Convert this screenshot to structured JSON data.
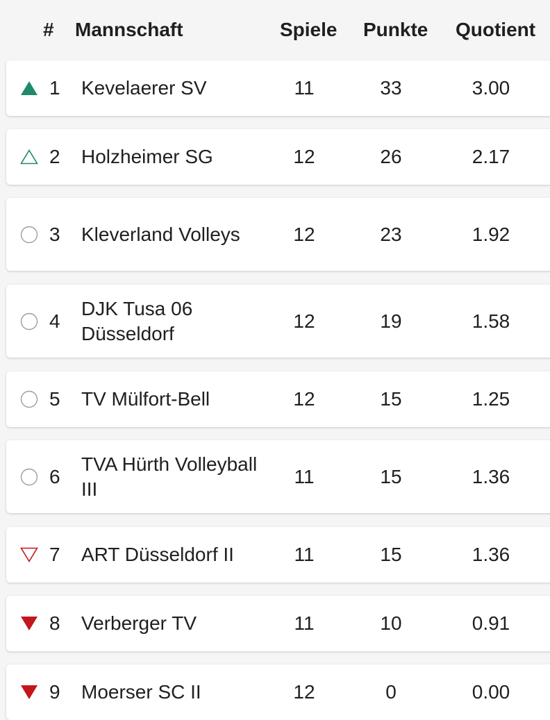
{
  "header": {
    "rank": "#",
    "team": "Mannschaft",
    "games": "Spiele",
    "points": "Punkte",
    "quotient": "Quotient"
  },
  "colors": {
    "up_green": "#1e8a6b",
    "down_red": "#c4161c",
    "neutral_gray": "#9e9e9e"
  },
  "rows": [
    {
      "rank": "1",
      "team": "Kevelaerer SV",
      "games": "11",
      "points": "33",
      "quotient": "3.00",
      "trend": "up-filled-icon"
    },
    {
      "rank": "2",
      "team": "Holzheimer SG",
      "games": "12",
      "points": "26",
      "quotient": "2.17",
      "trend": "up-outline-icon"
    },
    {
      "rank": "3",
      "team": "Kleverland Volleys",
      "games": "12",
      "points": "23",
      "quotient": "1.92",
      "trend": "neutral-circle-icon"
    },
    {
      "rank": "4",
      "team": "DJK Tusa 06 Düsseldorf",
      "games": "12",
      "points": "19",
      "quotient": "1.58",
      "trend": "neutral-circle-icon"
    },
    {
      "rank": "5",
      "team": "TV Mülfort-Bell",
      "games": "12",
      "points": "15",
      "quotient": "1.25",
      "trend": "neutral-circle-icon"
    },
    {
      "rank": "6",
      "team": "TVA Hürth Volleyball III",
      "games": "11",
      "points": "15",
      "quotient": "1.36",
      "trend": "neutral-circle-icon"
    },
    {
      "rank": "7",
      "team": "ART Düsseldorf II",
      "games": "11",
      "points": "15",
      "quotient": "1.36",
      "trend": "down-outline-icon"
    },
    {
      "rank": "8",
      "team": "Verberger TV",
      "games": "11",
      "points": "10",
      "quotient": "0.91",
      "trend": "down-filled-icon"
    },
    {
      "rank": "9",
      "team": "Moerser SC II",
      "games": "12",
      "points": "0",
      "quotient": "0.00",
      "trend": "down-filled-icon"
    }
  ]
}
